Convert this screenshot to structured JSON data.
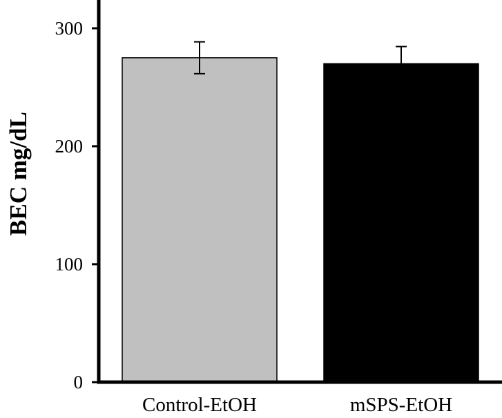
{
  "chart_data": {
    "type": "bar",
    "categories": [
      "Control-EtOH",
      "mSPS-EtOH"
    ],
    "series": [
      {
        "values": [
          275,
          270
        ],
        "errors": [
          13.5,
          14.5
        ],
        "colors": [
          "#c0c0c0",
          "#000000"
        ]
      }
    ],
    "title": "",
    "xlabel": "",
    "ylabel": "BEC mg/dL",
    "ylim": [
      0,
      300
    ],
    "yticks": [
      0,
      100,
      200,
      300
    ],
    "ytick_labels": [
      "0",
      "100",
      "200",
      "300"
    ],
    "grid": false
  }
}
